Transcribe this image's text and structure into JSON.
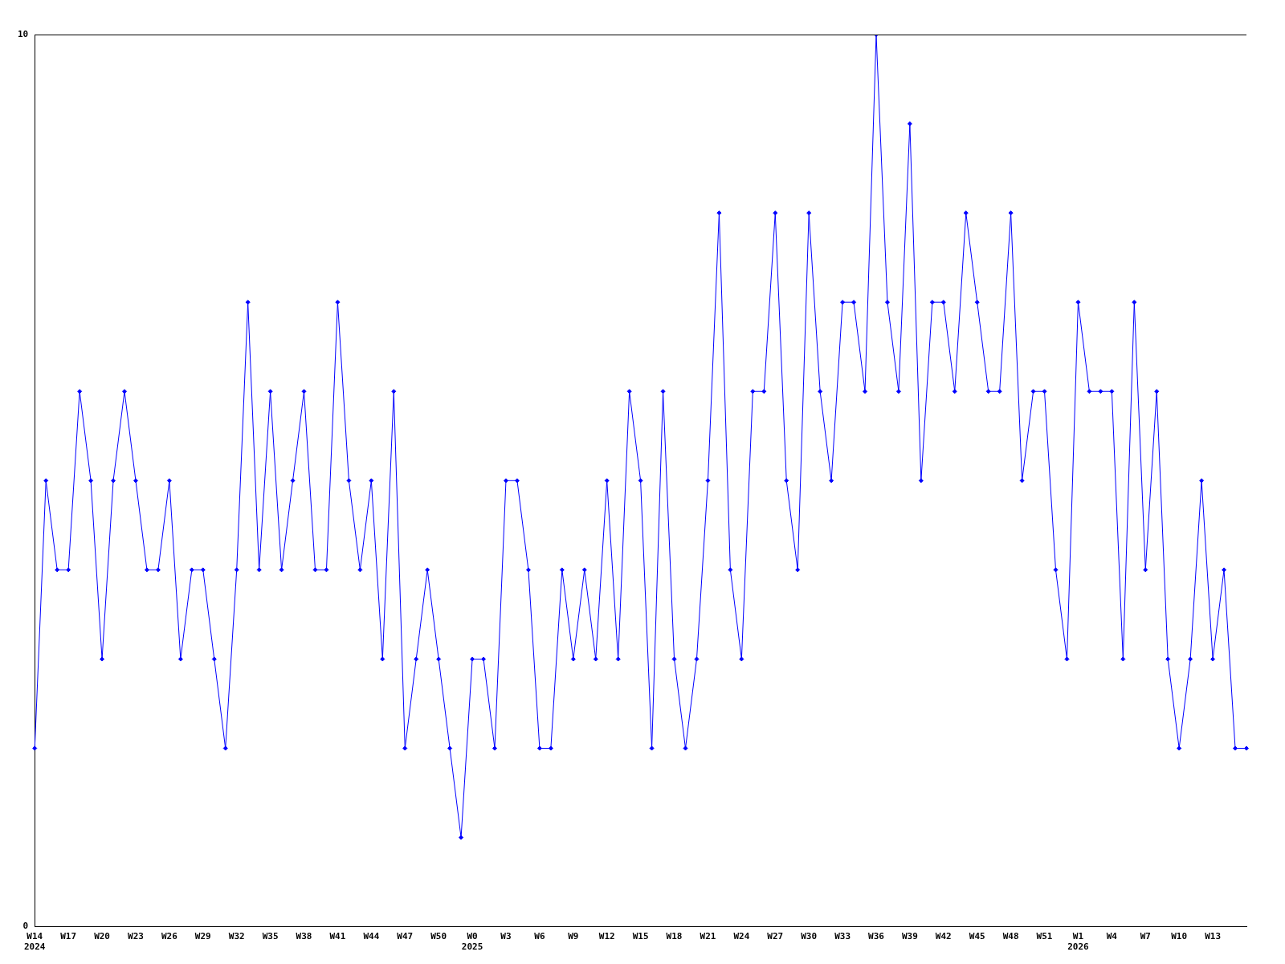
{
  "chart_data": {
    "type": "line",
    "categories": [
      "W14\n2024",
      null,
      null,
      "W17",
      null,
      null,
      "W20",
      null,
      null,
      "W23",
      null,
      null,
      "W26",
      null,
      null,
      "W29",
      null,
      null,
      "W32",
      null,
      null,
      "W35",
      null,
      null,
      "W38",
      null,
      null,
      "W41",
      null,
      null,
      "W44",
      null,
      null,
      "W47",
      null,
      null,
      "W50",
      null,
      null,
      "W0\n2025",
      null,
      null,
      "W3",
      null,
      null,
      "W6",
      null,
      null,
      "W9",
      null,
      null,
      "W12",
      null,
      null,
      "W15",
      null,
      null,
      "W18",
      null,
      null,
      "W21",
      null,
      null,
      "W24",
      null,
      null,
      "W27",
      null,
      null,
      "W30",
      null,
      null,
      "W33",
      null,
      null,
      "W36",
      null,
      null,
      "W39",
      null,
      null,
      "W42",
      null,
      null,
      "W45",
      null,
      null,
      "W48",
      null,
      null,
      "W51",
      null,
      null,
      "W1\n2026",
      null,
      null,
      "W4",
      null,
      null,
      "W7",
      null,
      null,
      "W10",
      null,
      null,
      "W13",
      null,
      null,
      null
    ],
    "series": [
      {
        "color": "#0000ff",
        "values": [
          2,
          5,
          4,
          4,
          6,
          5,
          3,
          5,
          6,
          5,
          4,
          4,
          5,
          3,
          4,
          4,
          3,
          2,
          4,
          7,
          4,
          6,
          4,
          5,
          6,
          4,
          4,
          7,
          5,
          4,
          5,
          3,
          6,
          2,
          3,
          4,
          3,
          2,
          1,
          3,
          3,
          2,
          5,
          5,
          4,
          2,
          2,
          4,
          3,
          4,
          3,
          5,
          3,
          6,
          5,
          2,
          6,
          3,
          2,
          3,
          5,
          8,
          4,
          3,
          6,
          6,
          8,
          5,
          4,
          8,
          6,
          5,
          7,
          7,
          6,
          10,
          7,
          6,
          9,
          5,
          7,
          7,
          6,
          8,
          7,
          6,
          6,
          8,
          5,
          6,
          6,
          4,
          3,
          7,
          6,
          6,
          6,
          3,
          7,
          4,
          6,
          3,
          2,
          3,
          5,
          3,
          4,
          2,
          2
        ]
      }
    ],
    "ylim": [
      0,
      10
    ],
    "yticks": [
      0,
      10
    ],
    "grid": false,
    "legend": false,
    "marker": "diamond",
    "line_style": "solid"
  }
}
